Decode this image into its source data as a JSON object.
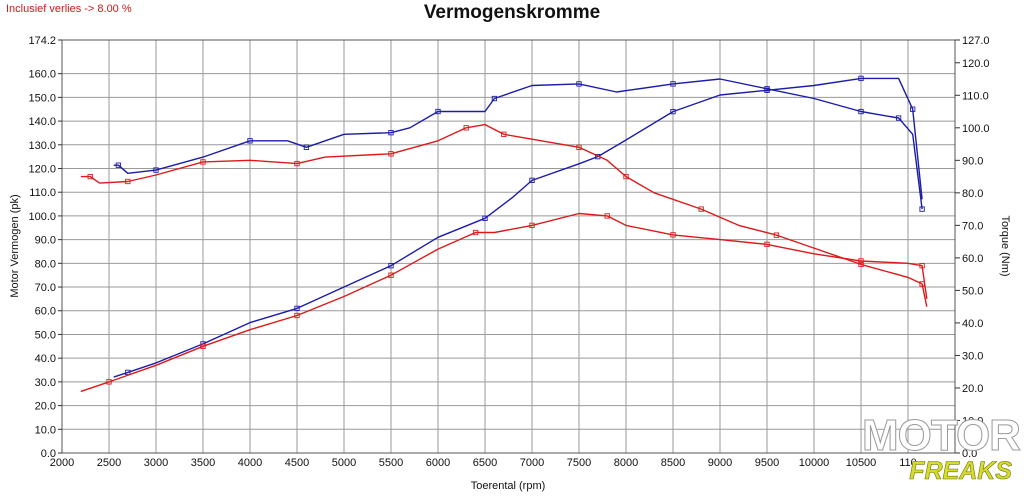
{
  "chart_data": {
    "type": "line",
    "title": "Vermogenskromme",
    "note": "Inclusief verlies -> 8.00 %",
    "xlabel": "Toerental (rpm)",
    "ylabel_left": "Motor Vermogen (pk)",
    "ylabel_right": "Torque (Nm)",
    "xlim": [
      2000,
      11500
    ],
    "ylim_left": [
      0,
      174.2
    ],
    "ylim_right": [
      0,
      127.0
    ],
    "x_ticks": [
      "2000",
      "2500",
      "3000",
      "3500",
      "4000",
      "4500",
      "5000",
      "5500",
      "6000",
      "6500",
      "7000",
      "7500",
      "8000",
      "8500",
      "9000",
      "9500",
      "10000",
      "10500",
      "110"
    ],
    "y_left_ticks": [
      "0.0",
      "10.0",
      "20.0",
      "30.0",
      "40.0",
      "50.0",
      "60.0",
      "70.0",
      "80.0",
      "90.0",
      "100.0",
      "110.0",
      "120.0",
      "130.0",
      "140.0",
      "150.0",
      "160.0",
      "174.2"
    ],
    "y_right_ticks": [
      "0.0",
      "10.0",
      "20.0",
      "30.0",
      "40.0",
      "50.0",
      "60.0",
      "70.0",
      "80.0",
      "90.0",
      "100.0",
      "110.0",
      "120.0",
      "127.0"
    ],
    "grid": true,
    "colors": {
      "blue": "#1c1ca8",
      "red": "#dd1a1a",
      "grid": "#9a9a9a"
    },
    "series": [
      {
        "color": "#1c1ca8",
        "axis": "left",
        "x": [
          2550,
          2700,
          3000,
          3500,
          4000,
          4500,
          5000,
          5500,
          6000,
          6500,
          6800,
          7000,
          7500,
          7700,
          8000,
          8500,
          9000,
          9500,
          10000,
          10500,
          10900,
          11050,
          11150
        ],
        "y": [
          32,
          34,
          38,
          46,
          55,
          61,
          70,
          79,
          91,
          99,
          108,
          115,
          122,
          125,
          132,
          144,
          151,
          153,
          155,
          158,
          158,
          145,
          107
        ]
      },
      {
        "color": "#1c1ca8",
        "axis": "right",
        "x": [
          2550,
          2600,
          2700,
          3000,
          3500,
          4000,
          4400,
          4600,
          5000,
          5500,
          5700,
          6000,
          6500,
          6600,
          7000,
          7500,
          7900,
          8500,
          9000,
          9500,
          10000,
          10500,
          10700,
          10900,
          11050,
          11150
        ],
        "y": [
          88.5,
          88.5,
          86,
          87,
          91,
          96,
          96,
          94,
          98,
          98.5,
          100,
          105,
          105,
          109,
          113,
          113.5,
          111,
          113.5,
          115,
          112,
          109,
          105,
          104,
          103,
          98,
          75
        ]
      },
      {
        "color": "#dd1a1a",
        "axis": "left",
        "x": [
          2200,
          2500,
          3000,
          3500,
          4000,
          4500,
          5000,
          5500,
          6000,
          6400,
          6600,
          7000,
          7500,
          7800,
          8000,
          8500,
          9000,
          9500,
          10000,
          10500,
          11000,
          11150,
          11200
        ],
        "y": [
          26,
          30,
          37,
          45,
          52,
          58,
          66,
          75,
          86,
          93,
          93,
          96,
          101,
          100,
          96,
          92,
          90,
          88,
          84,
          81,
          80,
          79,
          65
        ]
      },
      {
        "color": "#dd1a1a",
        "axis": "right",
        "x": [
          2200,
          2300,
          2400,
          2700,
          3000,
          3500,
          4000,
          4500,
          4800,
          5500,
          6000,
          6300,
          6500,
          6700,
          7000,
          7500,
          7800,
          8000,
          8300,
          8800,
          9200,
          9600,
          10000,
          10500,
          11000,
          11150,
          11200
        ],
        "y": [
          85,
          85,
          83,
          83.5,
          85.5,
          89.5,
          90,
          89,
          91,
          92,
          96,
          100,
          101,
          98,
          96.5,
          94,
          90,
          85,
          80,
          75,
          70,
          67,
          63,
          58,
          54,
          52,
          45
        ]
      }
    ]
  },
  "logo": {
    "top": "MOTOR",
    "bottom": "FREAKS"
  }
}
